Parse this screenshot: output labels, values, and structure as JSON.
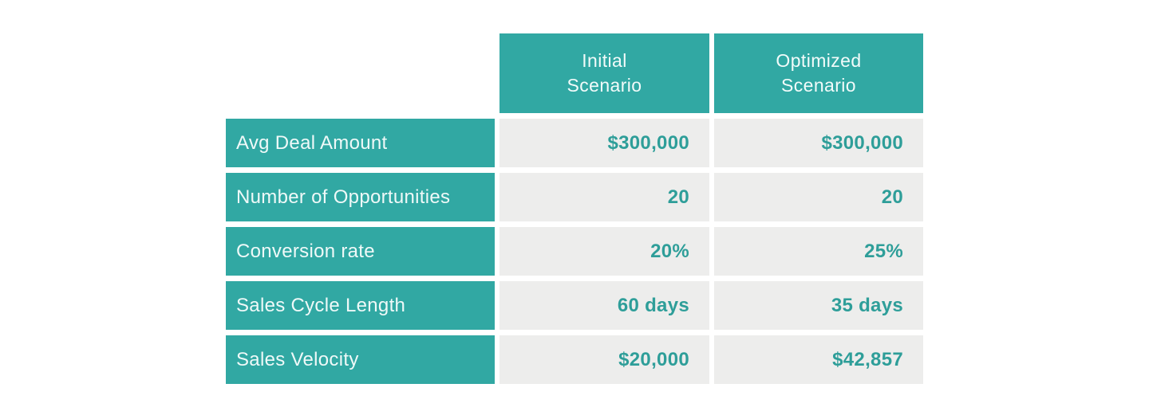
{
  "colors": {
    "teal_block": "#31a8a3",
    "value_text": "#2e9e99",
    "value_cell_bg": "#ededec",
    "header_text": "#ffffff",
    "page_bg": "#ffffff"
  },
  "table": {
    "column_headers": [
      "Initial\nScenario",
      "Optimized\nScenario"
    ],
    "rows": [
      {
        "label": "Avg Deal Amount",
        "initial": "$300,000",
        "optimized": "$300,000"
      },
      {
        "label": "Number of Opportunities",
        "initial": "20",
        "optimized": "20"
      },
      {
        "label": "Conversion rate",
        "initial": "20%",
        "optimized": "25%"
      },
      {
        "label": "Sales Cycle Length",
        "initial": "60 days",
        "optimized": "35 days"
      },
      {
        "label": "Sales Velocity",
        "initial": "$20,000",
        "optimized": "$42,857"
      }
    ]
  },
  "chart_data": {
    "type": "table",
    "title": "",
    "columns": [
      "",
      "Initial Scenario",
      "Optimized Scenario"
    ],
    "rows": [
      [
        "Avg Deal Amount",
        "$300,000",
        "$300,000"
      ],
      [
        "Number of Opportunities",
        "20",
        "20"
      ],
      [
        "Conversion rate",
        "20%",
        "25%"
      ],
      [
        "Sales Cycle Length",
        "60 days",
        "35 days"
      ],
      [
        "Sales Velocity",
        "$20,000",
        "$42,857"
      ]
    ],
    "notes": {
      "layout": "header row spans only the two value columns; row labels are teal blocks, values right-aligned bold teal on light gray"
    }
  }
}
